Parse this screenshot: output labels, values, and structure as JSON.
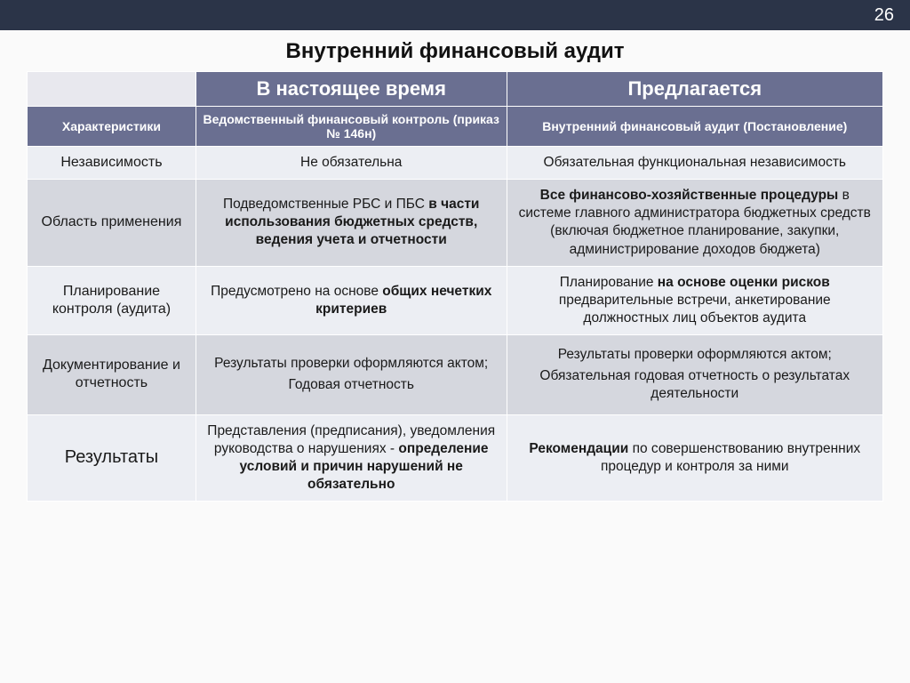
{
  "page_number": "26",
  "title": "Внутренний финансовый аудит",
  "colors": {
    "topbar_bg": "#2b3448",
    "header_bg": "#6a6f91",
    "row_light": "#eceef3",
    "row_dark": "#d5d7de"
  },
  "header": {
    "col2": "В настоящее время",
    "col3": "Предлагается",
    "sub1": "Характеристики",
    "sub2": "Ведомственный финансовый контроль (приказ № 146н)",
    "sub3": "Внутренний финансовый аудит (Постановление)"
  },
  "rows": {
    "r1": {
      "char": "Независимость",
      "cur_plain": "Не обязательна",
      "new_plain": "Обязательная функциональная независимость"
    },
    "r2": {
      "char": "Область применения",
      "cur_pre": "Подведомственные РБС и ПБС ",
      "cur_bold": "в части использования бюджетных средств, ведения учета и отчетности",
      "new_bold": "Все финансово-хозяйственные процедуры",
      "new_post": " в системе главного администратора бюджетных средств (включая бюджетное планирование, закупки, администрирование доходов бюджета)"
    },
    "r3": {
      "char": "Планирование контроля (аудита)",
      "cur_pre": "Предусмотрено на основе ",
      "cur_bold": "общих нечетких критериев",
      "new_pre": "Планирование ",
      "new_bold": "на основе оценки рисков",
      "new_post": " предварительные встречи, анкетирование должностных лиц объектов аудита"
    },
    "r4": {
      "char": "Документирование и отчетность",
      "cur_p1": "Результаты проверки оформляются актом;",
      "cur_p2": "Годовая отчетность",
      "new_p1": "Результаты проверки оформляются актом;",
      "new_p2": "Обязательная годовая отчетность о результатах деятельности"
    },
    "r5": {
      "char": "Результаты",
      "cur_pre": "Представления (предписания), уведомления руководства о нарушениях - ",
      "cur_bold": "определение условий и причин нарушений не обязательно",
      "new_bold": "Рекомендации",
      "new_post": " по совершенствованию внутренних процедур и контроля за ними"
    }
  }
}
